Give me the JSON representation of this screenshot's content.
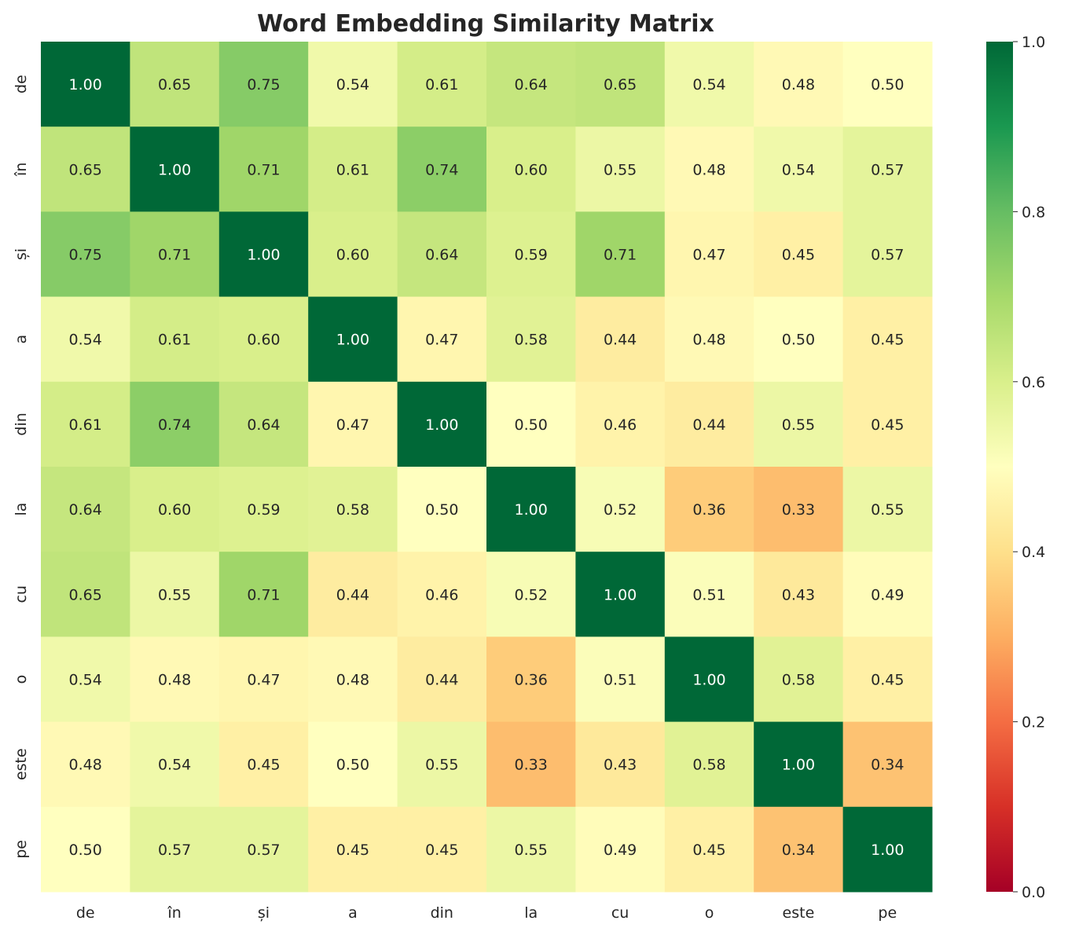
{
  "chart_data": {
    "type": "heatmap",
    "title": "Word Embedding Similarity Matrix",
    "xlabel": "",
    "ylabel": "",
    "x_labels": [
      "de",
      "în",
      "și",
      "a",
      "din",
      "la",
      "cu",
      "o",
      "este",
      "pe"
    ],
    "y_labels": [
      "de",
      "în",
      "și",
      "a",
      "din",
      "la",
      "cu",
      "o",
      "este",
      "pe"
    ],
    "values": [
      [
        1.0,
        0.65,
        0.75,
        0.54,
        0.61,
        0.64,
        0.65,
        0.54,
        0.48,
        0.5
      ],
      [
        0.65,
        1.0,
        0.71,
        0.61,
        0.74,
        0.6,
        0.55,
        0.48,
        0.54,
        0.57
      ],
      [
        0.75,
        0.71,
        1.0,
        0.6,
        0.64,
        0.59,
        0.71,
        0.47,
        0.45,
        0.57
      ],
      [
        0.54,
        0.61,
        0.6,
        1.0,
        0.47,
        0.58,
        0.44,
        0.48,
        0.5,
        0.45
      ],
      [
        0.61,
        0.74,
        0.64,
        0.47,
        1.0,
        0.5,
        0.46,
        0.44,
        0.55,
        0.45
      ],
      [
        0.64,
        0.6,
        0.59,
        0.58,
        0.5,
        1.0,
        0.52,
        0.36,
        0.33,
        0.55
      ],
      [
        0.65,
        0.55,
        0.71,
        0.44,
        0.46,
        0.52,
        1.0,
        0.51,
        0.43,
        0.49
      ],
      [
        0.54,
        0.48,
        0.47,
        0.48,
        0.44,
        0.36,
        0.51,
        1.0,
        0.58,
        0.45
      ],
      [
        0.48,
        0.54,
        0.45,
        0.5,
        0.55,
        0.33,
        0.43,
        0.58,
        1.0,
        0.34
      ],
      [
        0.5,
        0.57,
        0.57,
        0.45,
        0.45,
        0.55,
        0.49,
        0.45,
        0.34,
        1.0
      ]
    ],
    "value_format": "0.00",
    "colormap": "RdYlGn",
    "colormap_stops": [
      "#a50026",
      "#d73027",
      "#f46d43",
      "#fdae61",
      "#fee08b",
      "#ffffbf",
      "#d9ef8b",
      "#a6d96a",
      "#66bd63",
      "#1a9850",
      "#006837"
    ],
    "vmin": 0.0,
    "vmax": 1.0,
    "colorbar_ticks": [
      "0.0",
      "0.2",
      "0.4",
      "0.6",
      "0.8",
      "1.0"
    ],
    "colorbar_position": "right",
    "grid": false
  }
}
